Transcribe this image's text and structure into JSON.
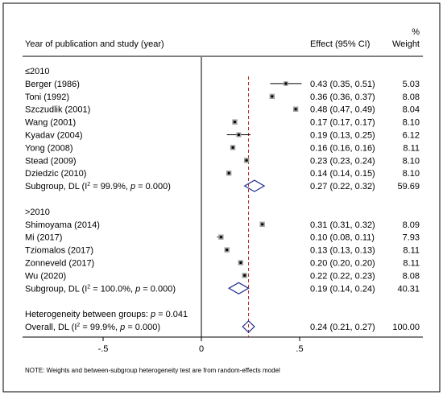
{
  "chart_data": {
    "type": "forest",
    "header": {
      "study_col": "Year of publication and study (year)",
      "effect_col": "Effect (95% CI)",
      "weight_col_line1": "%",
      "weight_col_line2": "Weight"
    },
    "rows": [
      {
        "kind": "group",
        "label": "≤2010"
      },
      {
        "kind": "study",
        "label": "Berger (1986)",
        "est": 0.43,
        "lo": 0.35,
        "hi": 0.51,
        "ci_text": "0.43 (0.35, 0.51)",
        "weight": "5.03"
      },
      {
        "kind": "study",
        "label": "Toni (1992)",
        "est": 0.36,
        "lo": 0.36,
        "hi": 0.37,
        "ci_text": "0.36 (0.36, 0.37)",
        "weight": "8.08"
      },
      {
        "kind": "study",
        "label": "Szczudlik (2001)",
        "est": 0.48,
        "lo": 0.47,
        "hi": 0.49,
        "ci_text": "0.48 (0.47, 0.49)",
        "weight": "8.04"
      },
      {
        "kind": "study",
        "label": "Wang (2001)",
        "est": 0.17,
        "lo": 0.17,
        "hi": 0.17,
        "ci_text": "0.17 (0.17, 0.17)",
        "weight": "8.10"
      },
      {
        "kind": "study",
        "label": "Kyadav (2004)",
        "est": 0.19,
        "lo": 0.13,
        "hi": 0.25,
        "ci_text": "0.19 (0.13, 0.25)",
        "weight": "6.12"
      },
      {
        "kind": "study",
        "label": "Yong (2008)",
        "est": 0.16,
        "lo": 0.16,
        "hi": 0.16,
        "ci_text": "0.16 (0.16, 0.16)",
        "weight": "8.11"
      },
      {
        "kind": "study",
        "label": "Stead (2009)",
        "est": 0.23,
        "lo": 0.23,
        "hi": 0.24,
        "ci_text": "0.23 (0.23, 0.24)",
        "weight": "8.10"
      },
      {
        "kind": "study",
        "label": "Dziedzic (2010)",
        "est": 0.14,
        "lo": 0.14,
        "hi": 0.15,
        "ci_text": "0.14 (0.14, 0.15)",
        "weight": "8.10"
      },
      {
        "kind": "subgroup",
        "label_pre": "Subgroup, DL (I",
        "label_sup": "2",
        "label_mid": " = 99.9%, ",
        "label_p": "p",
        "label_post": " = 0.000)",
        "est": 0.27,
        "lo": 0.22,
        "hi": 0.32,
        "ci_text": "0.27 (0.22, 0.32)",
        "weight": "59.69"
      },
      {
        "kind": "blank"
      },
      {
        "kind": "group",
        "label": ">2010"
      },
      {
        "kind": "study",
        "label": "Shimoyama (2014)",
        "est": 0.31,
        "lo": 0.31,
        "hi": 0.32,
        "ci_text": "0.31 (0.31, 0.32)",
        "weight": "8.09"
      },
      {
        "kind": "study",
        "label": "Mi (2017)",
        "est": 0.1,
        "lo": 0.08,
        "hi": 0.11,
        "ci_text": "0.10 (0.08, 0.11)",
        "weight": "7.93"
      },
      {
        "kind": "study",
        "label": "Tziomalos (2017)",
        "est": 0.13,
        "lo": 0.13,
        "hi": 0.13,
        "ci_text": "0.13 (0.13, 0.13)",
        "weight": "8.11"
      },
      {
        "kind": "study",
        "label": "Zonneveld (2017)",
        "est": 0.2,
        "lo": 0.2,
        "hi": 0.2,
        "ci_text": "0.20 (0.20, 0.20)",
        "weight": "8.11"
      },
      {
        "kind": "study",
        "label": "Wu (2020)",
        "est": 0.22,
        "lo": 0.22,
        "hi": 0.23,
        "ci_text": "0.22 (0.22, 0.23)",
        "weight": "8.08"
      },
      {
        "kind": "subgroup",
        "label_pre": "Subgroup, DL (I",
        "label_sup": "2",
        "label_mid": " = 100.0%, ",
        "label_p": "p",
        "label_post": " = 0.000)",
        "est": 0.19,
        "lo": 0.14,
        "hi": 0.24,
        "ci_text": "0.19 (0.14, 0.24)",
        "weight": "40.31"
      },
      {
        "kind": "blank"
      },
      {
        "kind": "heterogeneity",
        "label_pre": "Heterogeneity between groups: ",
        "label_p": "p",
        "label_post": " = 0.041"
      },
      {
        "kind": "overall",
        "label_pre": "Overall, DL (I",
        "label_sup": "2",
        "label_mid": " = 99.9%, ",
        "label_p": "p",
        "label_post": " = 0.000)",
        "est": 0.24,
        "lo": 0.21,
        "hi": 0.27,
        "ci_text": "0.24 (0.21, 0.27)",
        "weight": "100.00"
      }
    ],
    "x_ticks": [
      -0.5,
      0,
      0.5
    ],
    "x_tick_labels": [
      "-.5",
      "0",
      ".5"
    ],
    "null_line": 0,
    "overall_line": 0.24,
    "xlim": [
      -0.5,
      0.5
    ],
    "note": "NOTE: Weights and between-subgroup heterogeneity test are from random-effects model",
    "colors": {
      "marker": "#000000",
      "diamond": "#1f2a8c",
      "overall_line": "#b22222",
      "frame": "#000000"
    }
  }
}
